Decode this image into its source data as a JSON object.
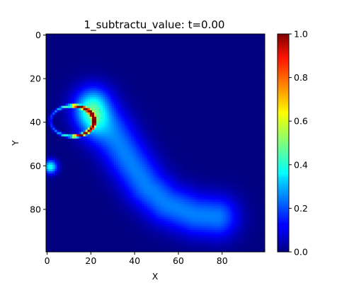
{
  "chart_data": {
    "type": "heatmap",
    "title": "1_subtractu_value: t=0.00",
    "xlabel": "X",
    "ylabel": "Y",
    "xlim": [
      0,
      100
    ],
    "ylim": [
      100,
      0
    ],
    "x_ticks": [
      0,
      20,
      40,
      60,
      80
    ],
    "y_ticks": [
      0,
      20,
      40,
      60,
      80
    ],
    "colormap": "jet",
    "colorbar": {
      "vmin": 0.0,
      "vmax": 1.0,
      "ticks": [
        "0.0",
        "0.2",
        "0.4",
        "0.6",
        "0.8",
        "1.0"
      ]
    },
    "field_description": {
      "background": 0.0,
      "bright_arc": {
        "center": [
          12,
          40
        ],
        "radius_x": 10,
        "radius_y": 7,
        "opening": "left",
        "peak_value": 1.0
      },
      "diffuse_plume": {
        "path": [
          [
            22,
            34
          ],
          [
            30,
            45
          ],
          [
            38,
            58
          ],
          [
            46,
            70
          ],
          [
            55,
            78
          ],
          [
            68,
            83
          ],
          [
            78,
            84
          ]
        ],
        "peak_value": 0.25
      },
      "left_edge_blob": {
        "center": [
          2,
          61
        ],
        "peak_value": 0.4
      }
    }
  }
}
